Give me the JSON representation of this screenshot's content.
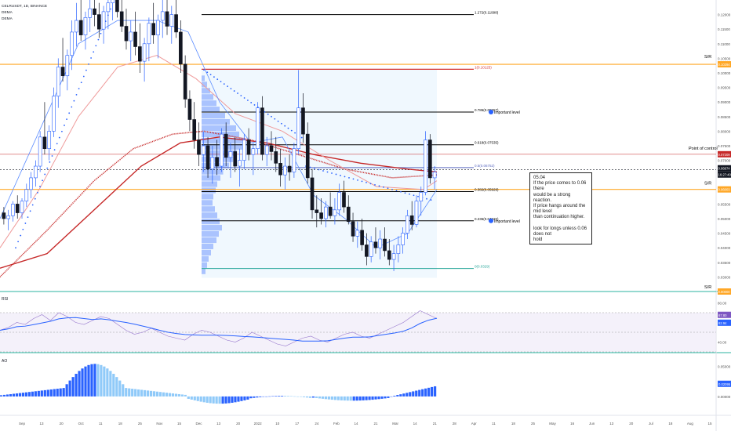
{
  "legend": {
    "symbol": "CELRUSDT, 1D, BINANCE",
    "ema1": "DEMA",
    "ema2": "DEMA"
  },
  "fib_levels": [
    {
      "label": "1.272(0.11998)",
      "value": 0.11998,
      "color": "#000000"
    },
    {
      "label": "1(0.10125)",
      "value": 0.10125,
      "color": "#d32f2f"
    },
    {
      "label": "0.786(0.08657)",
      "value": 0.08657,
      "color": "#000000"
    },
    {
      "label": "0.618(0.07535)",
      "value": 0.07535,
      "color": "#000000"
    },
    {
      "label": "0.5(0.06752)",
      "value": 0.06752,
      "color": "#5c6bc0"
    },
    {
      "label": "0.382(0.05929)",
      "value": 0.05929,
      "color": "#000000"
    },
    {
      "label": "0.236(0.04926)",
      "value": 0.04926,
      "color": "#000000"
    },
    {
      "label": "0(0.0329)",
      "value": 0.0329,
      "color": "#26a69a"
    }
  ],
  "annotations": {
    "important_1": "Important level",
    "important_2": "Important level",
    "poc": "Point of control",
    "sr_top": "S/R",
    "sr_mid": "S/R",
    "sr_bottom": "S/R"
  },
  "note": {
    "line1": "05.04",
    "line2": "If the price comes to 0.06 there",
    "line3": "would be a strong reaction.",
    "line4": "If price hangs around the mid level",
    "line5": "than continuation higher.",
    "line6": "look for longs unless 0.06 does not",
    "line7": "hold"
  },
  "price_axis": {
    "ticks": [
      "0.12000",
      "0.11500",
      "0.11000",
      "0.10500",
      "0.10000",
      "0.09500",
      "0.09000",
      "0.08500",
      "0.08000",
      "0.07500",
      "0.07000",
      "0.06500",
      "0.06000",
      "0.05500",
      "0.05000",
      "0.04500",
      "0.04000",
      "0.03500",
      "0.03000",
      "0.02500"
    ],
    "badge_sr_top": "0.10294",
    "badge_poc": "0.07209",
    "badge_price": "0.06674",
    "badge_price2": "16:27:40",
    "badge_sr_mid": "0.06003",
    "badge_sr_bottom": "0.00000",
    "price_top": 0.125,
    "price_bottom": 0.025
  },
  "rsi_panel": {
    "label": "RSI",
    "ticks": [
      "80.00",
      "60.00",
      "40.00"
    ],
    "badge_1": "67.80",
    "badge_2": "62.94"
  },
  "ao_panel": {
    "label": "AO",
    "ticks": [
      "0.05000",
      "0.00000"
    ],
    "badge": "0.02095"
  },
  "time_axis": {
    "labels": [
      "Sep",
      "13",
      "20",
      "Oct",
      "11",
      "18",
      "25",
      "Nov",
      "15",
      "Dec",
      "13",
      "20",
      "2022",
      "10",
      "17",
      "24",
      "Feb",
      "14",
      "21",
      "Mar",
      "14",
      "21",
      "28",
      "Apr",
      "11",
      "18",
      "25",
      "May",
      "16",
      "Jun",
      "13",
      "20",
      "Jul",
      "18",
      "Aug",
      "15"
    ]
  },
  "colors": {
    "bull": "#2962ff",
    "bear": "#131722",
    "sr_orange": "#ffa726",
    "poc_red": "#c62828",
    "ema_red": "#c62828",
    "ema_pink": "#ef9a9a",
    "profile": "#2962ff",
    "rsi_line": "#7e57c2",
    "rsi_ma": "#2962ff",
    "ao_up": "#2962ff",
    "ao_down": "#90caf9"
  },
  "chart_data": {
    "type": "candlestick",
    "title": "CELRUSDT, 1D, BINANCE",
    "ylim": [
      0.025,
      0.125
    ],
    "candles": [
      [
        0.052,
        0.054,
        0.048,
        0.05
      ],
      [
        0.05,
        0.053,
        0.046,
        0.051
      ],
      [
        0.051,
        0.056,
        0.049,
        0.055
      ],
      [
        0.055,
        0.058,
        0.05,
        0.052
      ],
      [
        0.052,
        0.057,
        0.05,
        0.056
      ],
      [
        0.056,
        0.062,
        0.054,
        0.06
      ],
      [
        0.06,
        0.066,
        0.057,
        0.064
      ],
      [
        0.064,
        0.07,
        0.061,
        0.068
      ],
      [
        0.068,
        0.08,
        0.066,
        0.078
      ],
      [
        0.078,
        0.09,
        0.072,
        0.074
      ],
      [
        0.074,
        0.082,
        0.07,
        0.08
      ],
      [
        0.08,
        0.095,
        0.078,
        0.092
      ],
      [
        0.092,
        0.105,
        0.088,
        0.102
      ],
      [
        0.102,
        0.112,
        0.097,
        0.099
      ],
      [
        0.099,
        0.108,
        0.094,
        0.106
      ],
      [
        0.106,
        0.118,
        0.101,
        0.114
      ],
      [
        0.114,
        0.124,
        0.109,
        0.118
      ],
      [
        0.118,
        0.126,
        0.111,
        0.113
      ],
      [
        0.113,
        0.121,
        0.108,
        0.119
      ],
      [
        0.119,
        0.127,
        0.114,
        0.122
      ],
      [
        0.122,
        0.129,
        0.116,
        0.12
      ],
      [
        0.12,
        0.124,
        0.112,
        0.115
      ],
      [
        0.115,
        0.123,
        0.11,
        0.121
      ],
      [
        0.121,
        0.128,
        0.115,
        0.124
      ],
      [
        0.124,
        0.131,
        0.118,
        0.126
      ],
      [
        0.126,
        0.13,
        0.119,
        0.121
      ],
      [
        0.121,
        0.127,
        0.114,
        0.116
      ],
      [
        0.116,
        0.122,
        0.108,
        0.111
      ],
      [
        0.111,
        0.118,
        0.104,
        0.114
      ],
      [
        0.114,
        0.121,
        0.106,
        0.109
      ],
      [
        0.109,
        0.117,
        0.1,
        0.104
      ],
      [
        0.104,
        0.112,
        0.097,
        0.11
      ],
      [
        0.11,
        0.119,
        0.104,
        0.117
      ],
      [
        0.117,
        0.124,
        0.11,
        0.113
      ],
      [
        0.113,
        0.12,
        0.105,
        0.118
      ],
      [
        0.118,
        0.125,
        0.112,
        0.121
      ],
      [
        0.121,
        0.126,
        0.113,
        0.116
      ],
      [
        0.116,
        0.123,
        0.11,
        0.12
      ],
      [
        0.12,
        0.125,
        0.112,
        0.114
      ],
      [
        0.114,
        0.118,
        0.1,
        0.103
      ],
      [
        0.103,
        0.106,
        0.088,
        0.091
      ],
      [
        0.091,
        0.094,
        0.08,
        0.084
      ],
      [
        0.084,
        0.09,
        0.074,
        0.077
      ],
      [
        0.077,
        0.083,
        0.068,
        0.072
      ],
      [
        0.072,
        0.08,
        0.066,
        0.075
      ],
      [
        0.075,
        0.078,
        0.064,
        0.067
      ],
      [
        0.067,
        0.075,
        0.062,
        0.071
      ],
      [
        0.071,
        0.077,
        0.065,
        0.068
      ],
      [
        0.068,
        0.081,
        0.066,
        0.079
      ],
      [
        0.079,
        0.083,
        0.068,
        0.071
      ],
      [
        0.071,
        0.076,
        0.064,
        0.073
      ],
      [
        0.073,
        0.078,
        0.066,
        0.068
      ],
      [
        0.068,
        0.074,
        0.061,
        0.07
      ],
      [
        0.07,
        0.079,
        0.067,
        0.077
      ],
      [
        0.077,
        0.081,
        0.07,
        0.072
      ],
      [
        0.072,
        0.076,
        0.065,
        0.074
      ],
      [
        0.074,
        0.09,
        0.072,
        0.088
      ],
      [
        0.088,
        0.092,
        0.07,
        0.072
      ],
      [
        0.072,
        0.078,
        0.068,
        0.075
      ],
      [
        0.075,
        0.08,
        0.07,
        0.073
      ],
      [
        0.073,
        0.078,
        0.066,
        0.069
      ],
      [
        0.069,
        0.074,
        0.061,
        0.065
      ],
      [
        0.065,
        0.071,
        0.06,
        0.068
      ],
      [
        0.068,
        0.072,
        0.063,
        0.066
      ],
      [
        0.066,
        0.076,
        0.064,
        0.074
      ],
      [
        0.074,
        0.101,
        0.072,
        0.088
      ],
      [
        0.088,
        0.093,
        0.076,
        0.079
      ],
      [
        0.079,
        0.083,
        0.062,
        0.064
      ],
      [
        0.064,
        0.067,
        0.05,
        0.053
      ],
      [
        0.053,
        0.058,
        0.047,
        0.052
      ],
      [
        0.052,
        0.057,
        0.048,
        0.05
      ],
      [
        0.05,
        0.056,
        0.047,
        0.054
      ],
      [
        0.054,
        0.059,
        0.05,
        0.051
      ],
      [
        0.051,
        0.057,
        0.048,
        0.053
      ],
      [
        0.053,
        0.062,
        0.051,
        0.059
      ],
      [
        0.059,
        0.063,
        0.052,
        0.054
      ],
      [
        0.054,
        0.058,
        0.048,
        0.049
      ],
      [
        0.049,
        0.052,
        0.042,
        0.044
      ],
      [
        0.044,
        0.049,
        0.04,
        0.046
      ],
      [
        0.046,
        0.05,
        0.039,
        0.041
      ],
      [
        0.041,
        0.045,
        0.034,
        0.037
      ],
      [
        0.037,
        0.044,
        0.035,
        0.042
      ],
      [
        0.042,
        0.047,
        0.038,
        0.04
      ],
      [
        0.04,
        0.046,
        0.036,
        0.043
      ],
      [
        0.043,
        0.047,
        0.037,
        0.039
      ],
      [
        0.039,
        0.043,
        0.034,
        0.036
      ],
      [
        0.036,
        0.041,
        0.032,
        0.038
      ],
      [
        0.038,
        0.044,
        0.035,
        0.041
      ],
      [
        0.041,
        0.047,
        0.038,
        0.045
      ],
      [
        0.045,
        0.053,
        0.043,
        0.051
      ],
      [
        0.051,
        0.056,
        0.046,
        0.048
      ],
      [
        0.048,
        0.058,
        0.047,
        0.056
      ],
      [
        0.056,
        0.061,
        0.051,
        0.059
      ],
      [
        0.059,
        0.08,
        0.058,
        0.077
      ],
      [
        0.077,
        0.079,
        0.062,
        0.064
      ],
      [
        0.064,
        0.068,
        0.06,
        0.066
      ]
    ]
  }
}
